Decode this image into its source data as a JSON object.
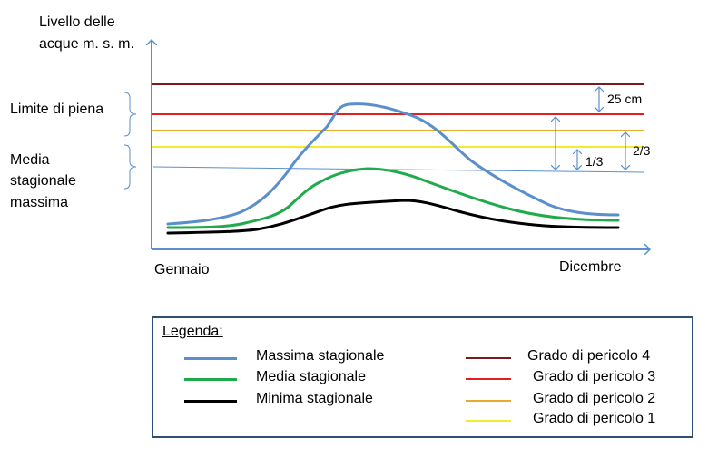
{
  "diagram": {
    "y_axis_label_line1": "Livello delle",
    "y_axis_label_line2": "acque m. s. m.",
    "x_start_label": "Gennaio",
    "x_end_label": "Dicembre",
    "left_labels": {
      "limite_piena": "Limite di piena",
      "media_line1": "Media",
      "media_line2": "stagionale",
      "media_line3": "massima"
    },
    "annotations": {
      "cm25": "25 cm",
      "two_thirds": "2/3",
      "one_third": "1/3"
    }
  },
  "legend": {
    "title": "Legenda",
    "title_suffix": ":",
    "series": [
      {
        "label": "Massima stagionale",
        "color": "#5b8fcc",
        "width": 3
      },
      {
        "label": "Media stagionale",
        "color": "#1faa4b",
        "width": 3
      },
      {
        "label": "Minima stagionale",
        "color": "#000000",
        "width": 3
      }
    ],
    "danger": [
      {
        "label": "Grado di pericolo 4",
        "color": "#7b1a1a"
      },
      {
        "label": "Grado di pericolo 3",
        "color": "#e41e1e"
      },
      {
        "label": "Grado di pericolo 2",
        "color": "#e8a92c"
      },
      {
        "label": "Grado di pericolo 1",
        "color": "#f2ec2a"
      }
    ]
  },
  "colors": {
    "axis": "#5b8fcc",
    "media_line": "#5b8fcc",
    "bracket": "#5b8fcc",
    "legend_border": "#2f4f6f"
  }
}
